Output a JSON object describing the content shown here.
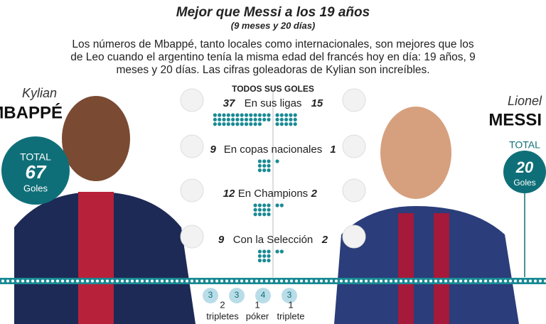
{
  "header": {
    "title": "Mejor que Messi a los 19 años",
    "subtitle": "(9 meses y 20 días)",
    "intro": "Los números de Mbappé, tanto locales como internacionales, son mejores que los de Leo cuando el argentino tenía la misma edad del francés hoy en día: 19 años, 9 meses y 20 días. Las cifras goleadoras de Kylian son increíbles."
  },
  "left_player": {
    "first_name": "Kylian",
    "last_name": "MBAPPÉ",
    "total_label": "TOTAL",
    "total": 67,
    "unit": "Goles"
  },
  "right_player": {
    "first_name": "Lionel",
    "last_name": "MESSI",
    "total_label": "TOTAL",
    "total": 20,
    "unit": "Goles"
  },
  "section_title": "TODOS SUS GOLES",
  "rows": [
    {
      "label": "En sus ligas",
      "left": 37,
      "right": 15
    },
    {
      "label": "En copas nacionales",
      "left": 9,
      "right": 1
    },
    {
      "label": "En Champions",
      "left": 12,
      "right": 2
    },
    {
      "label": "Con la Selección",
      "left": 9,
      "right": 2
    }
  ],
  "hat_tricks": {
    "left": [
      {
        "balls": [
          3,
          3
        ],
        "count": 2,
        "label": "tripletes"
      },
      {
        "balls": [
          4
        ],
        "count": 1,
        "label": "póker"
      }
    ],
    "right": [
      {
        "balls": [
          3
        ],
        "count": 1,
        "label": "triplete"
      }
    ]
  }
}
